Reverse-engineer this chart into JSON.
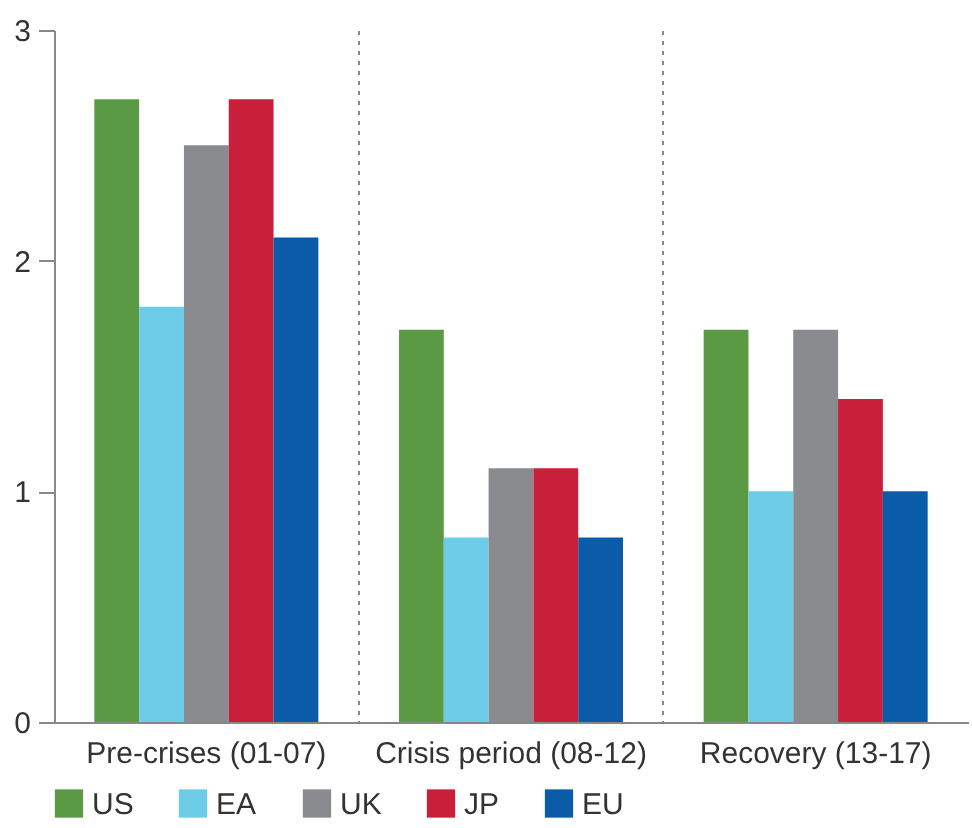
{
  "chart_data": {
    "type": "bar",
    "categories": [
      "Pre-crises (01-07)",
      "Crisis period (08-12)",
      "Recovery (13-17)"
    ],
    "series": [
      {
        "name": "US",
        "color": "#5a9a45",
        "values": [
          2.7,
          1.7,
          1.7
        ]
      },
      {
        "name": "EA",
        "color": "#6dcde8",
        "values": [
          1.8,
          0.8,
          1.0
        ]
      },
      {
        "name": "UK",
        "color": "#8a8b8e",
        "values": [
          2.5,
          1.1,
          1.7
        ]
      },
      {
        "name": "JP",
        "color": "#c8203a",
        "values": [
          2.7,
          1.1,
          1.4
        ]
      },
      {
        "name": "EU",
        "color": "#0a5ca8",
        "values": [
          2.1,
          0.8,
          1.0
        ]
      }
    ],
    "ylim": [
      0,
      3
    ],
    "yticks": [
      0,
      1,
      2,
      3
    ],
    "grid": "x",
    "legend": "bottom"
  }
}
